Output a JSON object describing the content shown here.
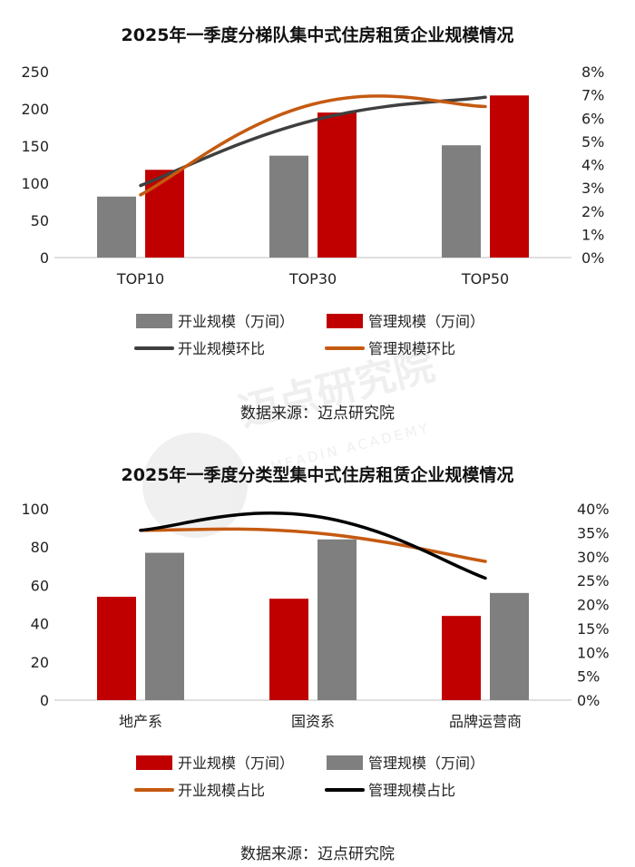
{
  "colors": {
    "red": "#C00000",
    "gray": "#7F7F7F",
    "dark_line": "#3F3F3F",
    "orange_line": "#C55A11",
    "black_line": "#000000"
  },
  "watermark": {
    "text_cn": "迈点研究院",
    "text_en": "MEADIN ACADEMY"
  },
  "chart_data": [
    {
      "type": "bar",
      "title": "2025年一季度分梯队集中式住房租赁企业规模情况",
      "categories": [
        "TOP10",
        "TOP30",
        "TOP50"
      ],
      "series": [
        {
          "name": "开业规模（万间）",
          "kind": "bar",
          "axis": "left",
          "color": "#7F7F7F",
          "values": [
            82,
            137,
            151
          ]
        },
        {
          "name": "管理规模（万间）",
          "kind": "bar",
          "axis": "left",
          "color": "#C00000",
          "values": [
            118,
            195,
            218
          ]
        },
        {
          "name": "开业规模环比",
          "kind": "line",
          "axis": "right",
          "color": "#3F3F3F",
          "values": [
            3.1,
            5.9,
            6.9
          ]
        },
        {
          "name": "管理规模环比",
          "kind": "line",
          "axis": "right",
          "color": "#C55A11",
          "values": [
            2.7,
            6.6,
            6.5
          ]
        }
      ],
      "ylim_left": [
        0,
        250
      ],
      "yticks_left": [
        "0",
        "50",
        "100",
        "150",
        "200",
        "250"
      ],
      "ylim_right": [
        0,
        8
      ],
      "yticks_right": [
        "0%",
        "1%",
        "2%",
        "3%",
        "4%",
        "5%",
        "6%",
        "7%",
        "8%"
      ],
      "legend": [
        "开业规模（万间）",
        "管理规模（万间）",
        "开业规模环比",
        "管理规模环比"
      ],
      "legend_position": "bottom",
      "grid": false,
      "source": "数据来源：迈点研究院"
    },
    {
      "type": "bar",
      "title": "2025年一季度分类型集中式住房租赁企业规模情况",
      "categories": [
        "地产系",
        "国资系",
        "品牌运营商"
      ],
      "series": [
        {
          "name": "开业规模（万间）",
          "kind": "bar",
          "axis": "left",
          "color": "#C00000",
          "values": [
            54,
            53,
            44
          ]
        },
        {
          "name": "管理规模（万间）",
          "kind": "bar",
          "axis": "left",
          "color": "#7F7F7F",
          "values": [
            77,
            84,
            56
          ]
        },
        {
          "name": "开业规模占比",
          "kind": "line",
          "axis": "right",
          "color": "#C55A11",
          "values": [
            35.5,
            35.0,
            29.0
          ]
        },
        {
          "name": "管理规模占比",
          "kind": "line",
          "axis": "right",
          "color": "#000000",
          "values": [
            35.5,
            38.5,
            25.5
          ]
        }
      ],
      "ylim_left": [
        0,
        100
      ],
      "yticks_left": [
        "0",
        "20",
        "40",
        "60",
        "80",
        "100"
      ],
      "ylim_right": [
        0,
        40
      ],
      "yticks_right": [
        "0%",
        "5%",
        "10%",
        "15%",
        "20%",
        "25%",
        "30%",
        "35%",
        "40%"
      ],
      "legend": [
        "开业规模（万间）",
        "管理规模（万间）",
        "开业规模占比",
        "管理规模占比"
      ],
      "legend_position": "bottom",
      "grid": false,
      "source": "数据来源：迈点研究院"
    }
  ]
}
